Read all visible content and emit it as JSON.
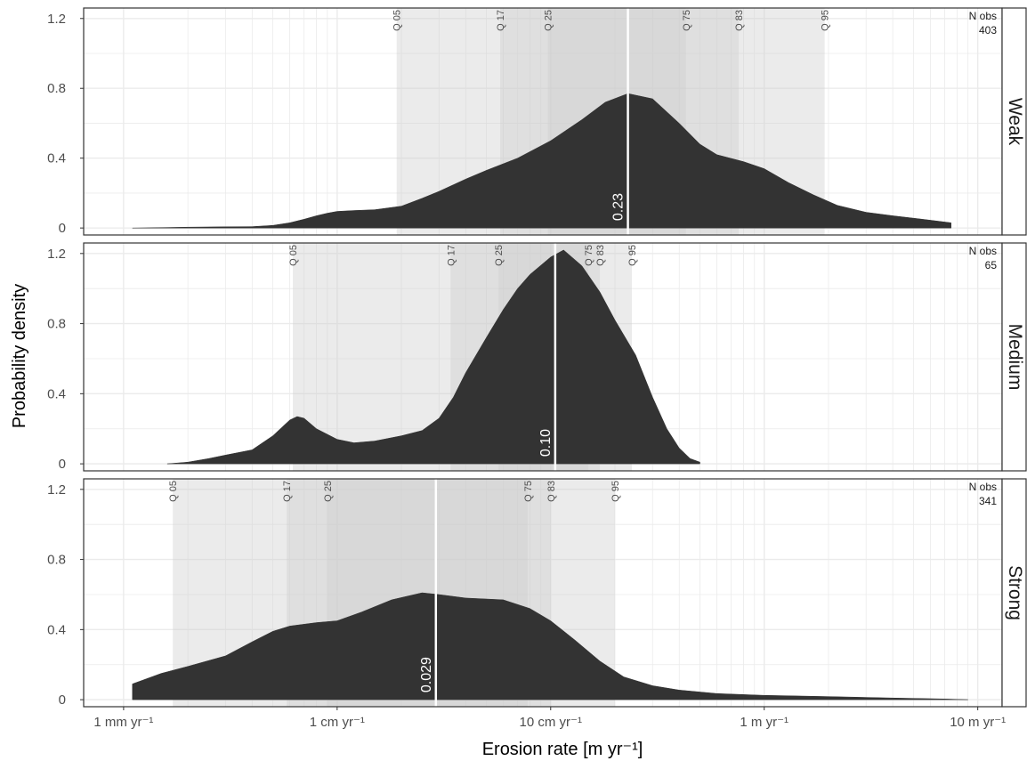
{
  "chart_data": {
    "type": "area",
    "xlabel": "Erosion rate [m yr⁻¹]",
    "ylabel": "Probability density",
    "x_scale": "log10",
    "xlim": [
      0.00065,
      13
    ],
    "ylim": [
      -0.04,
      1.26
    ],
    "x_ticks": [
      {
        "value": 0.001,
        "label": "1 mm yr⁻¹"
      },
      {
        "value": 0.01,
        "label": "1 cm yr⁻¹"
      },
      {
        "value": 0.1,
        "label": "10 cm yr⁻¹"
      },
      {
        "value": 1,
        "label": "1 m yr⁻¹"
      },
      {
        "value": 10,
        "label": "10 m yr⁻¹"
      }
    ],
    "y_ticks": [
      {
        "value": 0,
        "label": "0"
      },
      {
        "value": 0.4,
        "label": "0.4"
      },
      {
        "value": 0.8,
        "label": "0.8"
      },
      {
        "value": 1.2,
        "label": "1.2"
      }
    ],
    "grid": true,
    "panels": [
      {
        "strip_label": "Weak",
        "n_obs_label": "N obs",
        "n_obs": "403",
        "median_label": "0.23",
        "median": 0.23,
        "quantiles": [
          {
            "label": "Q 05",
            "value": 0.019
          },
          {
            "label": "Q 17",
            "value": 0.058
          },
          {
            "label": "Q 25",
            "value": 0.097
          },
          {
            "label": "Q 75",
            "value": 0.43
          },
          {
            "label": "Q 83",
            "value": 0.76
          },
          {
            "label": "Q 95",
            "value": 1.92
          }
        ],
        "density": [
          [
            0.0011,
            0.0
          ],
          [
            0.002,
            0.005
          ],
          [
            0.003,
            0.007
          ],
          [
            0.004,
            0.008
          ],
          [
            0.005,
            0.015
          ],
          [
            0.006,
            0.03
          ],
          [
            0.007,
            0.05
          ],
          [
            0.008,
            0.07
          ],
          [
            0.009,
            0.085
          ],
          [
            0.01,
            0.095
          ],
          [
            0.012,
            0.1
          ],
          [
            0.015,
            0.105
          ],
          [
            0.02,
            0.125
          ],
          [
            0.025,
            0.17
          ],
          [
            0.03,
            0.21
          ],
          [
            0.04,
            0.28
          ],
          [
            0.05,
            0.33
          ],
          [
            0.07,
            0.4
          ],
          [
            0.1,
            0.5
          ],
          [
            0.14,
            0.62
          ],
          [
            0.18,
            0.72
          ],
          [
            0.23,
            0.77
          ],
          [
            0.3,
            0.74
          ],
          [
            0.4,
            0.6
          ],
          [
            0.5,
            0.48
          ],
          [
            0.6,
            0.42
          ],
          [
            0.8,
            0.38
          ],
          [
            1.0,
            0.34
          ],
          [
            1.3,
            0.26
          ],
          [
            1.7,
            0.19
          ],
          [
            2.2,
            0.13
          ],
          [
            3.0,
            0.09
          ],
          [
            4.0,
            0.07
          ],
          [
            5.5,
            0.05
          ],
          [
            7.5,
            0.03
          ]
        ]
      },
      {
        "strip_label": "Medium",
        "n_obs_label": "N obs",
        "n_obs": "65",
        "median_label": "0.10",
        "median": 0.105,
        "quantiles": [
          {
            "label": "Q 05",
            "value": 0.0062
          },
          {
            "label": "Q 17",
            "value": 0.034
          },
          {
            "label": "Q 25",
            "value": 0.057
          },
          {
            "label": "Q 75",
            "value": 0.15
          },
          {
            "label": "Q 83",
            "value": 0.17
          },
          {
            "label": "Q 95",
            "value": 0.24
          }
        ],
        "density": [
          [
            0.0016,
            0.0
          ],
          [
            0.002,
            0.01
          ],
          [
            0.0025,
            0.03
          ],
          [
            0.003,
            0.05
          ],
          [
            0.004,
            0.08
          ],
          [
            0.005,
            0.16
          ],
          [
            0.006,
            0.25
          ],
          [
            0.0065,
            0.27
          ],
          [
            0.007,
            0.26
          ],
          [
            0.008,
            0.2
          ],
          [
            0.01,
            0.14
          ],
          [
            0.012,
            0.12
          ],
          [
            0.015,
            0.13
          ],
          [
            0.02,
            0.16
          ],
          [
            0.025,
            0.19
          ],
          [
            0.03,
            0.26
          ],
          [
            0.035,
            0.38
          ],
          [
            0.04,
            0.52
          ],
          [
            0.05,
            0.72
          ],
          [
            0.06,
            0.88
          ],
          [
            0.07,
            1.0
          ],
          [
            0.08,
            1.08
          ],
          [
            0.1,
            1.18
          ],
          [
            0.115,
            1.22
          ],
          [
            0.14,
            1.13
          ],
          [
            0.17,
            0.98
          ],
          [
            0.2,
            0.82
          ],
          [
            0.25,
            0.62
          ],
          [
            0.3,
            0.38
          ],
          [
            0.35,
            0.2
          ],
          [
            0.4,
            0.09
          ],
          [
            0.45,
            0.03
          ],
          [
            0.5,
            0.01
          ]
        ]
      },
      {
        "strip_label": "Strong",
        "n_obs_label": "N obs",
        "n_obs": "341",
        "median_label": "0.029",
        "median": 0.029,
        "quantiles": [
          {
            "label": "Q 05",
            "value": 0.0017
          },
          {
            "label": "Q 17",
            "value": 0.0058
          },
          {
            "label": "Q 25",
            "value": 0.009
          },
          {
            "label": "Q 75",
            "value": 0.078
          },
          {
            "label": "Q 83",
            "value": 0.1
          },
          {
            "label": "Q 95",
            "value": 0.2
          }
        ],
        "density": [
          [
            0.0011,
            0.09
          ],
          [
            0.0015,
            0.15
          ],
          [
            0.002,
            0.19
          ],
          [
            0.003,
            0.25
          ],
          [
            0.004,
            0.33
          ],
          [
            0.005,
            0.39
          ],
          [
            0.006,
            0.42
          ],
          [
            0.008,
            0.44
          ],
          [
            0.01,
            0.45
          ],
          [
            0.013,
            0.5
          ],
          [
            0.018,
            0.57
          ],
          [
            0.025,
            0.61
          ],
          [
            0.03,
            0.6
          ],
          [
            0.04,
            0.58
          ],
          [
            0.06,
            0.57
          ],
          [
            0.08,
            0.52
          ],
          [
            0.1,
            0.45
          ],
          [
            0.13,
            0.34
          ],
          [
            0.17,
            0.22
          ],
          [
            0.22,
            0.13
          ],
          [
            0.3,
            0.08
          ],
          [
            0.4,
            0.055
          ],
          [
            0.6,
            0.035
          ],
          [
            1.0,
            0.025
          ],
          [
            2.0,
            0.018
          ],
          [
            4.0,
            0.01
          ],
          [
            7.0,
            0.004
          ],
          [
            9.0,
            0.0
          ]
        ]
      }
    ]
  },
  "colors": {
    "density_fill": "#333333",
    "quantile_band": "#cccccc",
    "median_line": "#ffffff",
    "grid": "#ebebeb",
    "frame": "#333333"
  }
}
